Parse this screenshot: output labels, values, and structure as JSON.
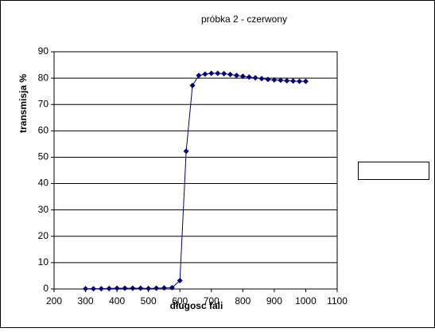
{
  "chart_data": {
    "type": "scatter-line",
    "title": "próbka 2 - czerwony",
    "x_label": "długosc fali",
    "y_label": "transmisja %",
    "x": [
      300,
      325,
      350,
      375,
      400,
      425,
      450,
      475,
      500,
      525,
      550,
      575,
      600,
      620,
      640,
      660,
      680,
      700,
      720,
      740,
      760,
      780,
      800,
      820,
      840,
      860,
      880,
      900,
      920,
      940,
      960,
      980,
      1000
    ],
    "values": [
      0.1,
      0.1,
      0.1,
      0.2,
      0.3,
      0.3,
      0.3,
      0.3,
      0.2,
      0.3,
      0.4,
      0.5,
      3.2,
      52.3,
      77.2,
      81,
      81.5,
      81.8,
      81.8,
      81.7,
      81.4,
      81,
      80.7,
      80.4,
      80.1,
      79.8,
      79.5,
      79.3,
      79.2,
      79,
      78.9,
      78.8,
      78.8
    ],
    "color": "#000080",
    "xlim": [
      200,
      1100
    ],
    "xticks": [
      200,
      300,
      400,
      500,
      600,
      700,
      800,
      900,
      1000,
      1100
    ],
    "ylim": [
      0,
      90
    ],
    "yticks": [
      0,
      10,
      20,
      30,
      40,
      50,
      60,
      70,
      80,
      90
    ],
    "grid": true
  }
}
